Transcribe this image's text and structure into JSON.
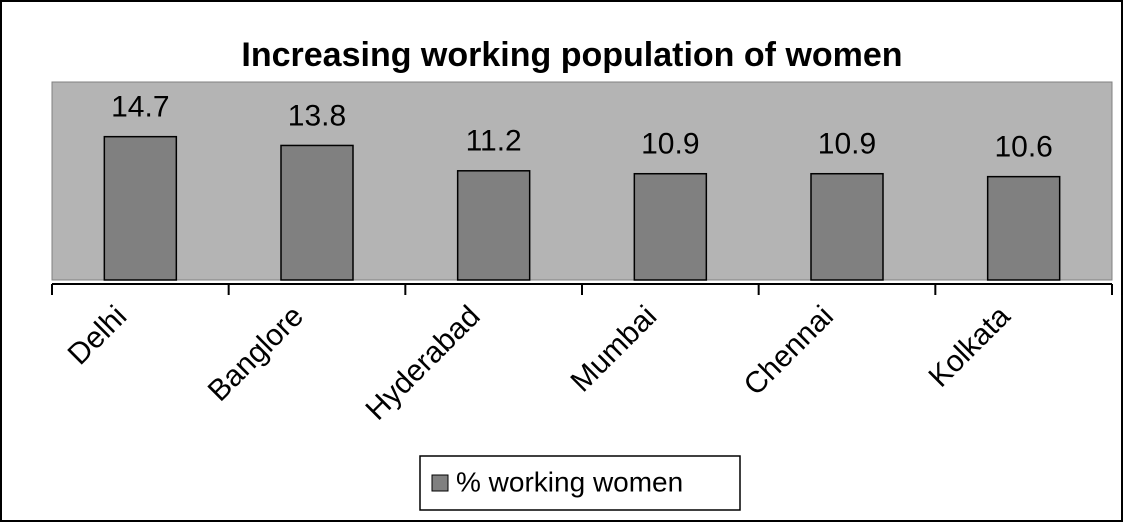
{
  "chart_data": {
    "type": "bar",
    "title": "Increasing working population of women",
    "categories": [
      "Delhi",
      "Banglore",
      "Hyderabad",
      "Mumbai",
      "Chennai",
      "Kolkata"
    ],
    "series": [
      {
        "name": "% working women",
        "color": "#808080",
        "values": [
          14.7,
          13.8,
          11.2,
          10.9,
          10.9,
          10.6
        ]
      }
    ],
    "ylim": [
      0,
      20
    ],
    "legend": "bottom"
  }
}
